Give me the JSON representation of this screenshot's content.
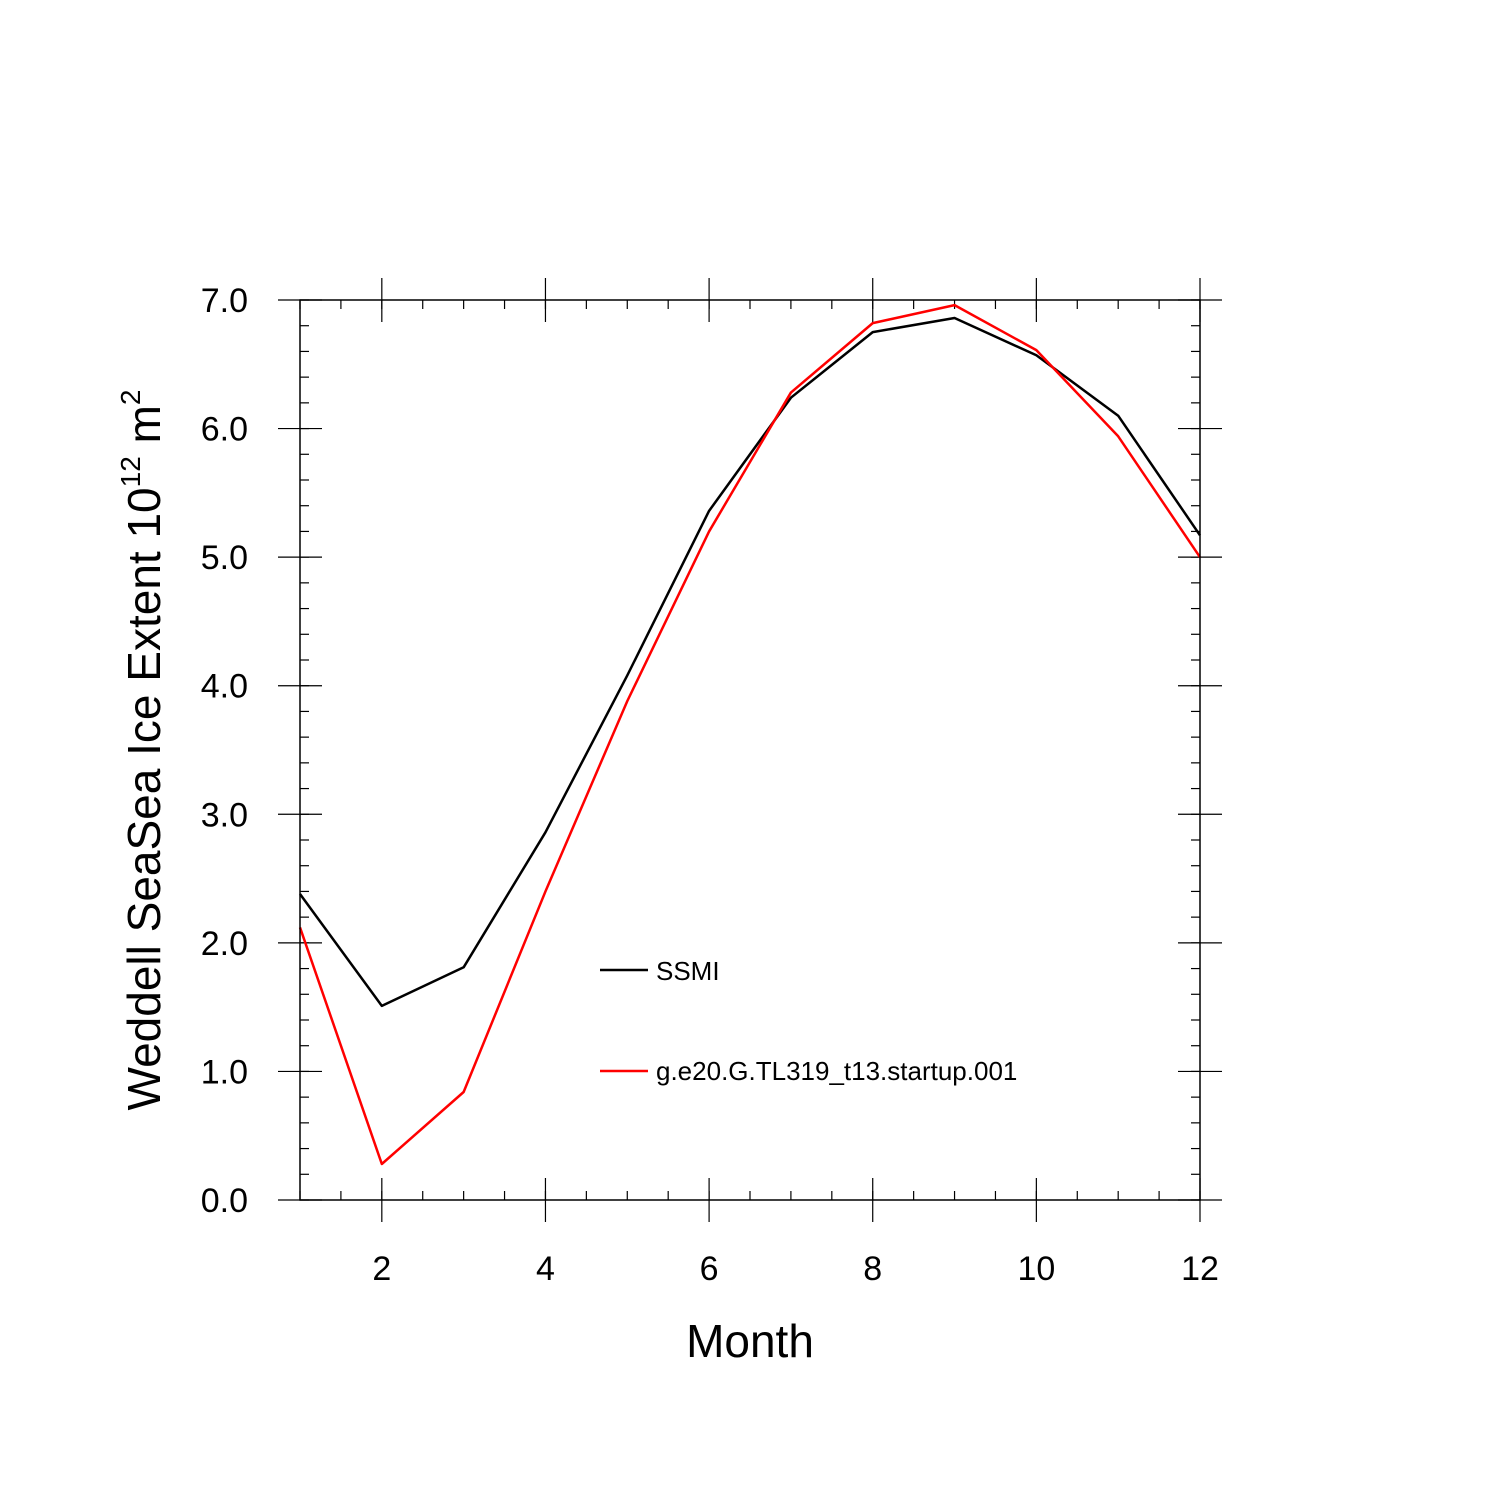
{
  "chart_data": {
    "type": "line",
    "title": "",
    "xlabel": "Month",
    "ylabel": {
      "text": "Weddell SeaSea Ice Extent 10",
      "superscript": "12",
      "unit": " m",
      "unit_superscript": "2"
    },
    "xlim": [
      1,
      12
    ],
    "ylim": [
      0.0,
      7.0
    ],
    "x_ticks": [
      2,
      4,
      6,
      8,
      10,
      12
    ],
    "y_ticks": [
      "0.0",
      "1.0",
      "2.0",
      "3.0",
      "4.0",
      "5.0",
      "6.0",
      "7.0"
    ],
    "x": [
      1,
      2,
      3,
      4,
      5,
      6,
      7,
      8,
      9,
      10,
      11,
      12
    ],
    "series": [
      {
        "name": "SSMI",
        "color": "#000000",
        "values": [
          2.38,
          1.51,
          1.81,
          2.86,
          4.08,
          5.36,
          6.24,
          6.75,
          6.86,
          6.57,
          6.1,
          5.17
        ]
      },
      {
        "name": "g.e20.G.TL319_t13.startup.001",
        "color": "#ff0000",
        "values": [
          2.12,
          0.28,
          0.84,
          2.4,
          3.88,
          5.2,
          6.28,
          6.82,
          6.96,
          6.61,
          5.94,
          5.0
        ]
      }
    ],
    "legend_position": "inside-lower-center",
    "grid": false
  }
}
